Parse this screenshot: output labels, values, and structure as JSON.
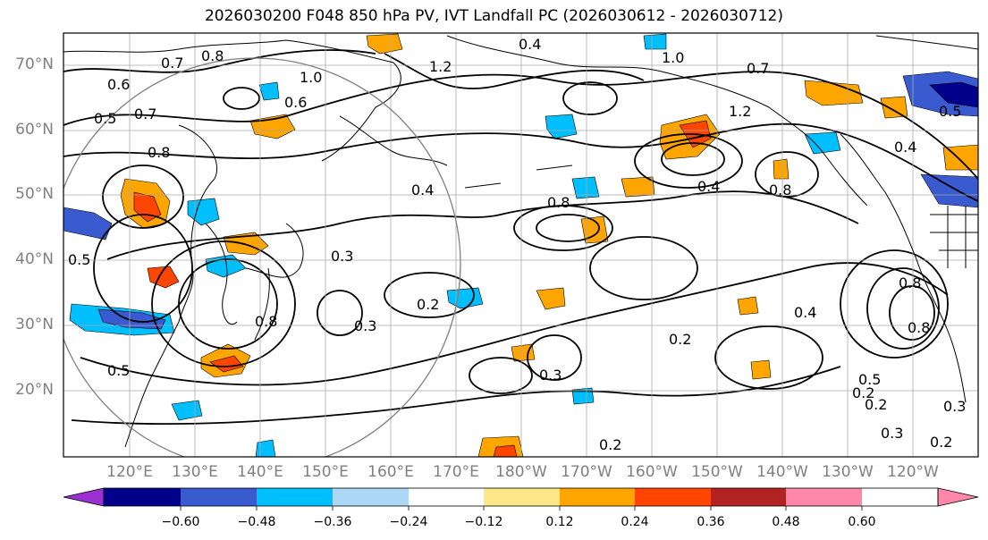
{
  "title": "2026030200 F048 850 hPa PV, IVT Landfall PC (2026030612 - 2026030712)",
  "map": {
    "lat_labels": [
      "70°N",
      "60°N",
      "50°N",
      "40°N",
      "30°N",
      "20°N"
    ],
    "lon_labels": [
      "120°E",
      "130°E",
      "140°E",
      "150°E",
      "160°E",
      "170°E",
      "180°W",
      "170°W",
      "160°W",
      "150°W",
      "140°W",
      "130°W",
      "120°W"
    ],
    "contour_labels": [
      "0.7",
      "0.8",
      "0.6",
      "0.5",
      "0.7",
      "0.8",
      "1.0",
      "1.2",
      "0.6",
      "0.4",
      "0.3",
      "0.3",
      "0.2",
      "0.4",
      "0.8",
      "0.2",
      "0.3",
      "0.8",
      "0.4",
      "1.2",
      "0.4",
      "0.8",
      "0.7",
      "1.0",
      "0.5",
      "0.5",
      "0.8",
      "0.3",
      "0.2",
      "0.2",
      "0.3",
      "0.2",
      "0.4",
      "0.5",
      "0.8",
      "0.2",
      "0.5"
    ]
  },
  "colorbar": {
    "tick_labels": [
      "−0.60",
      "−0.48",
      "−0.36",
      "−0.24",
      "−0.12",
      "0.12",
      "0.24",
      "0.36",
      "0.48",
      "0.60"
    ],
    "colors": [
      "#9b30d0",
      "#00008b",
      "#3a5bd0",
      "#00bfff",
      "#add8f5",
      "#ffffff",
      "#ffe88a",
      "#ffa500",
      "#ff4500",
      "#b22222",
      "#ff88aa"
    ]
  }
}
